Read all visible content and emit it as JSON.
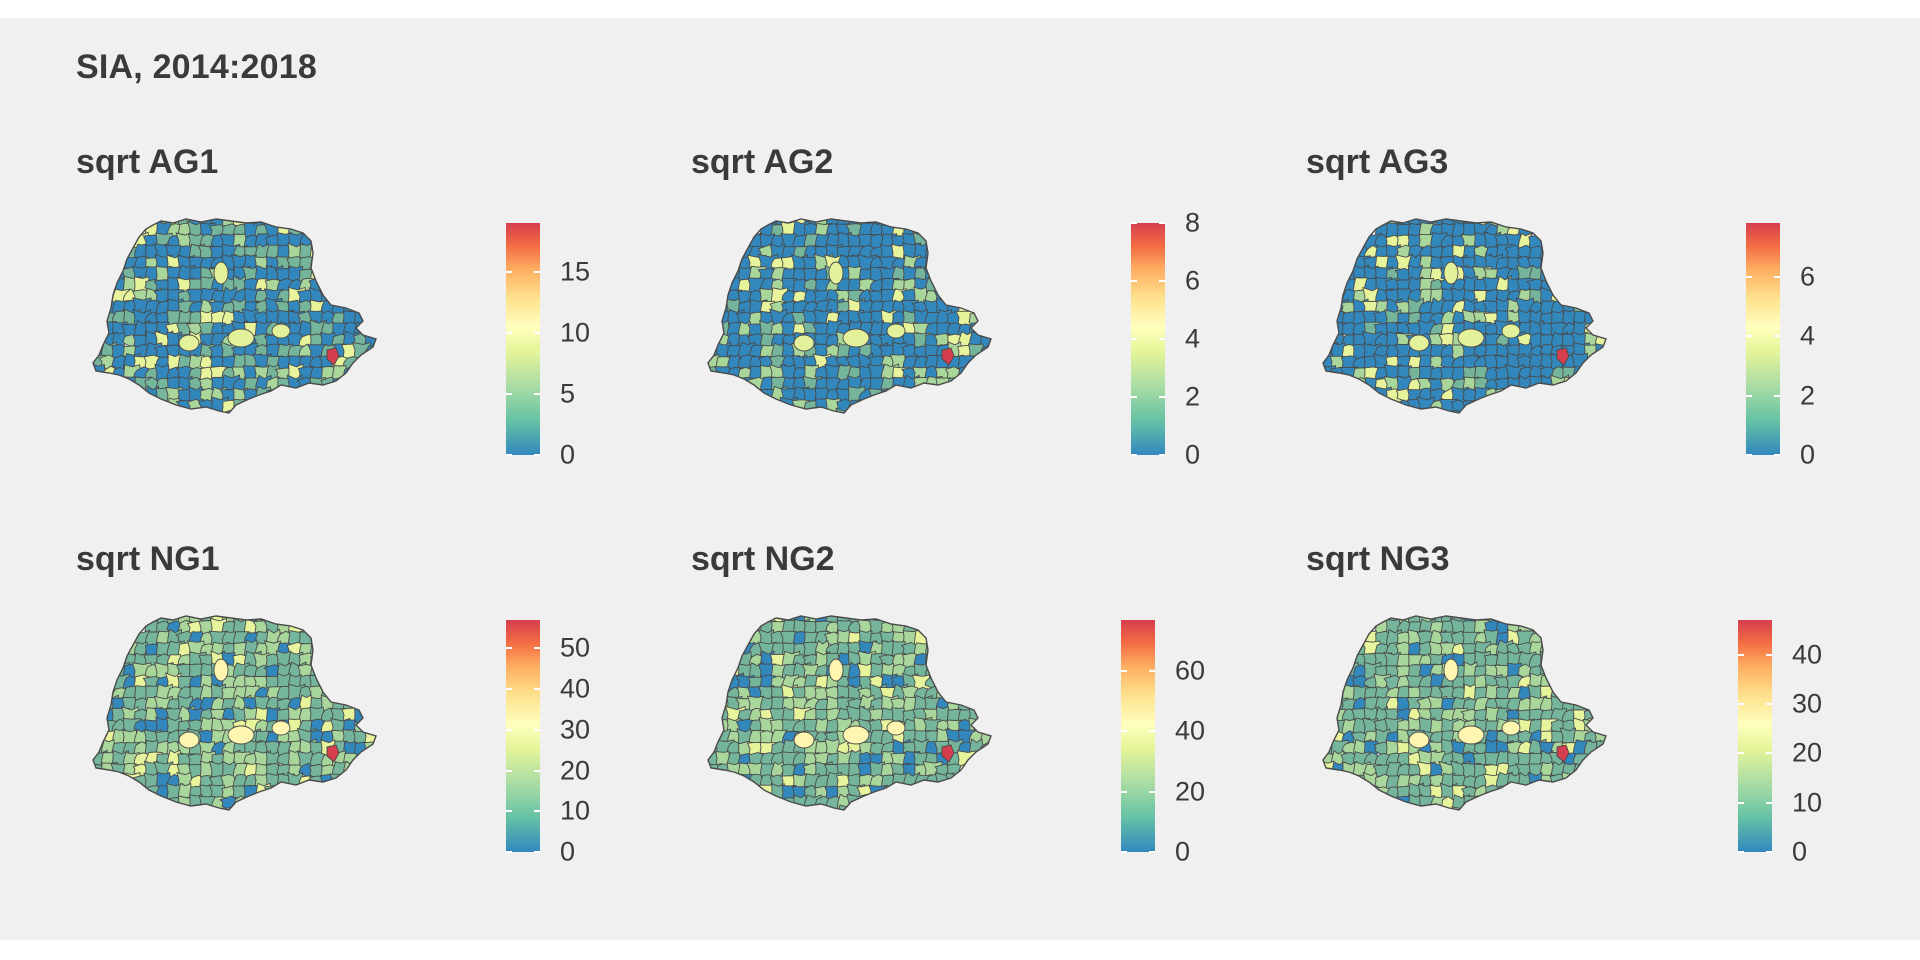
{
  "title": "SIA, 2014:2018",
  "colors": {
    "background": "#f0f0f0",
    "scale": [
      "#3288bd",
      "#66c2a5",
      "#abdda4",
      "#e6f598",
      "#ffffbf",
      "#fee08b",
      "#fdae61",
      "#f46d43",
      "#d53e4f"
    ],
    "border": "#4a4a4a",
    "highlight": "#d53e4f"
  },
  "panels": [
    {
      "title": "sqrt AG1",
      "max": 19,
      "ticks": [
        0,
        5,
        10,
        15
      ],
      "tick_labels": [
        "0",
        "5",
        "10",
        "15"
      ],
      "dominant": "low"
    },
    {
      "title": "sqrt AG2",
      "max": 8,
      "ticks": [
        0,
        2,
        4,
        6,
        8
      ],
      "tick_labels": [
        "0",
        "2",
        "4",
        "6",
        "8"
      ],
      "dominant": "lowest"
    },
    {
      "title": "sqrt AG3",
      "max": 7.8,
      "ticks": [
        0,
        2,
        4,
        6
      ],
      "tick_labels": [
        "0",
        "2",
        "4",
        "6"
      ],
      "dominant": "lowest"
    },
    {
      "title": "sqrt NG1",
      "max": 57,
      "ticks": [
        0,
        10,
        20,
        30,
        40,
        50
      ],
      "tick_labels": [
        "0",
        "10",
        "20",
        "30",
        "40",
        "50"
      ],
      "dominant": "mid"
    },
    {
      "title": "sqrt NG2",
      "max": 77,
      "ticks": [
        0,
        20,
        40,
        60
      ],
      "tick_labels": [
        "0",
        "20",
        "40",
        "60"
      ],
      "dominant": "mid"
    },
    {
      "title": "sqrt NG3",
      "max": 47,
      "ticks": [
        0,
        10,
        20,
        30,
        40
      ],
      "tick_labels": [
        "0",
        "10",
        "20",
        "30",
        "40"
      ],
      "dominant": "mid"
    }
  ]
}
